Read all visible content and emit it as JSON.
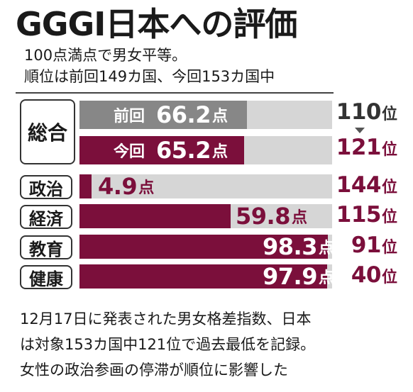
{
  "title": "GGGI日本への評価",
  "subtitle_lines": [
    "100点満点で男女平等。",
    "順位は前回149カ国、今回153カ国中"
  ],
  "point_unit": "点",
  "rank_unit": "位",
  "colors": {
    "previous": "#878787",
    "current": "#7b0f3b",
    "track": "#d6d6d6"
  },
  "chart_data": {
    "type": "bar",
    "orientation": "horizontal",
    "max_score": 100,
    "categories": [
      "総合（前回）",
      "総合（今回）",
      "政治",
      "経済",
      "教育",
      "健康"
    ],
    "overall": {
      "label": "総合",
      "previous": {
        "label": "前回",
        "score": "66.2",
        "rank": "110"
      },
      "current": {
        "label": "今回",
        "score": "65.2",
        "rank": "121"
      }
    },
    "subindices": [
      {
        "label": "政治",
        "score": "4.9",
        "rank": "144"
      },
      {
        "label": "経済",
        "score": "59.8",
        "rank": "115"
      },
      {
        "label": "教育",
        "score": "98.3",
        "rank": "91"
      },
      {
        "label": "健康",
        "score": "97.9",
        "rank": "40"
      }
    ]
  },
  "notes": [
    "12月17日に発表された男女格差指数、日本",
    "は対象153カ国中121位で過去最低を記録。",
    "女性の政治参画の停滞が順位に影響した"
  ]
}
